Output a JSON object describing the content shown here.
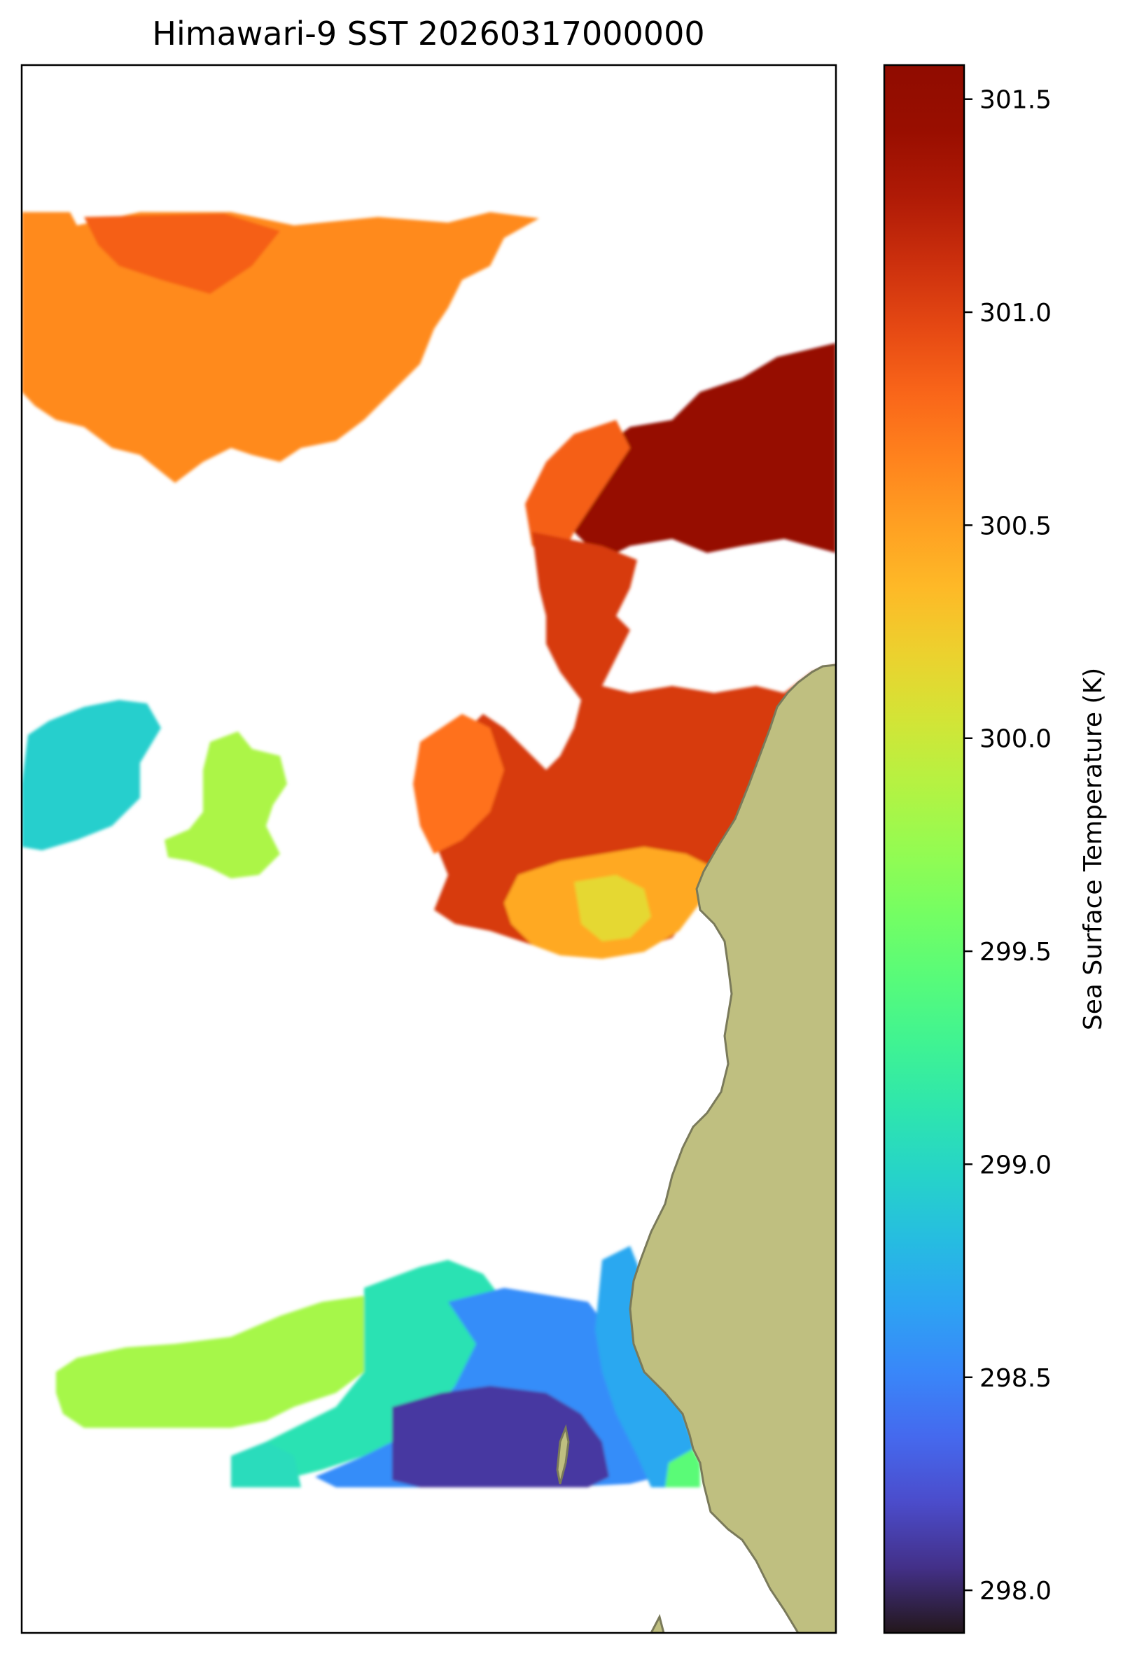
{
  "chart_data": {
    "type": "heatmap",
    "title": "Himawari-9 SST 20260317000000",
    "colorbar": {
      "label": "Sea Surface Temperature (K)",
      "min": 297.9,
      "max": 301.58,
      "ticks": [
        298.0,
        298.5,
        299.0,
        299.5,
        300.0,
        300.5,
        301.0,
        301.5
      ],
      "tick_labels": [
        "298.0",
        "298.5",
        "299.0",
        "299.5",
        "300.0",
        "300.5",
        "301.0",
        "301.5"
      ],
      "colormap": "turbo"
    },
    "grid": false,
    "land_color": "#bfbf80",
    "coastline_color": "#7a7a5a",
    "no_data_color": "#ffffff"
  }
}
